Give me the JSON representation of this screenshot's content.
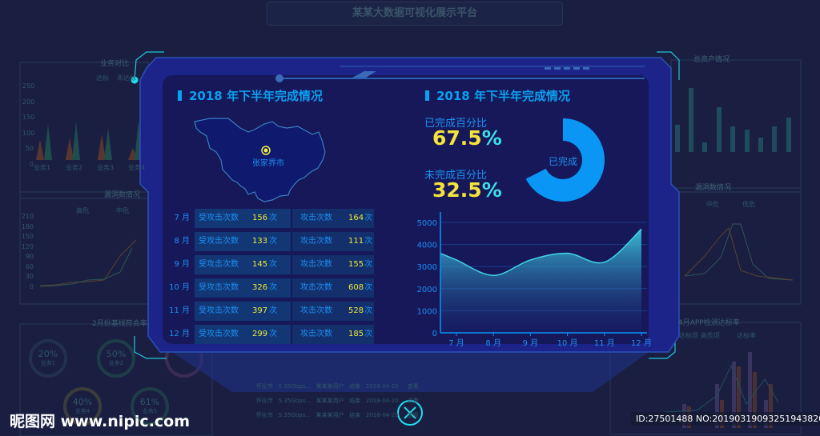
{
  "header": {
    "title": "某某大数据可视化展示平台"
  },
  "background": {
    "panels": [
      "业务对比",
      "漏洞数情况",
      "2月份基线符合率",
      "总资产情况",
      "漏洞数情况",
      "4月APP检测达标率"
    ],
    "legend_business": [
      "达标",
      "未达标"
    ],
    "legend_vuln": [
      "高危",
      "中危",
      "低危"
    ],
    "legend_app": [
      "达标项",
      "高危项",
      "达标率"
    ],
    "business_categories": [
      "业务1",
      "业务2",
      "业务3",
      "业务4"
    ],
    "business_yticks": [
      "250",
      "200",
      "150",
      "100",
      "50",
      "0"
    ],
    "vuln_yticks": [
      "210",
      "180",
      "150",
      "120",
      "90",
      "60",
      "30",
      "0"
    ],
    "gauges": [
      {
        "value": "20%",
        "label": "业务1"
      },
      {
        "value": "50%",
        "label": "业务2"
      },
      {
        "value": "40%",
        "label": "业务4"
      },
      {
        "value": "61%",
        "label": "业务5"
      }
    ],
    "table_rows": [
      [
        "怀化市",
        "5.35Gbps...",
        "某某某用户",
        "结束"
      ],
      [
        "怀化市",
        "5.35Gbps...",
        "某某某用户",
        "结束"
      ],
      [
        "怀化市",
        "5.35Gbps...",
        "某某某用户",
        "结束"
      ]
    ],
    "table_dates": [
      "2018-04-20",
      "2018-04-20",
      "2018-04-20"
    ],
    "view_label": "查看"
  },
  "modal": {
    "left": {
      "title": "2018 年下半年完成情况",
      "map_city": "张家界市",
      "rows": [
        {
          "month": "7 月",
          "received_label": "受攻击次数",
          "received": "156",
          "attack_label": "攻击次数",
          "attack": "164",
          "unit": "次"
        },
        {
          "month": "8 月",
          "received_label": "受攻击次数",
          "received": "133",
          "attack_label": "攻击次数",
          "attack": "111",
          "unit": "次"
        },
        {
          "month": "9 月",
          "received_label": "受攻击次数",
          "received": "145",
          "attack_label": "攻击次数",
          "attack": "155",
          "unit": "次"
        },
        {
          "month": "10 月",
          "received_label": "受攻击次数",
          "received": "326",
          "attack_label": "攻击次数",
          "attack": "608",
          "unit": "次"
        },
        {
          "month": "11 月",
          "received_label": "受攻击次数",
          "received": "397",
          "attack_label": "攻击次数",
          "attack": "528",
          "unit": "次"
        },
        {
          "month": "12 月",
          "received_label": "受攻击次数",
          "received": "299",
          "attack_label": "攻击次数",
          "attack": "185",
          "unit": "次"
        }
      ]
    },
    "right": {
      "title": "2018 年下半年完成情况",
      "done_label": "已完成百分比",
      "done_value": "67.5",
      "done_unit": "%",
      "todo_label": "未完成百分比",
      "todo_value": "32.5",
      "todo_unit": "%",
      "donut_label": "已完成",
      "donut_fraction": 0.675,
      "donut_color": "#0a96f5"
    },
    "close_icon": "close-circle-icon"
  },
  "chart_data": {
    "type": "area",
    "categories": [
      "7 月",
      "8 月",
      "9 月",
      "10 月",
      "11 月",
      "12 月"
    ],
    "values": [
      3300,
      2600,
      3300,
      3600,
      3200,
      4700
    ],
    "yticks": [
      "0",
      "1000",
      "2000",
      "3000",
      "4000",
      "5000"
    ],
    "ylim": [
      0,
      5000
    ],
    "grid": true,
    "color": "#3ed6e8"
  },
  "watermark": {
    "site": "昵图网 www.nipic.com",
    "id": "ID:27501488 NO:20190319093251943820"
  }
}
